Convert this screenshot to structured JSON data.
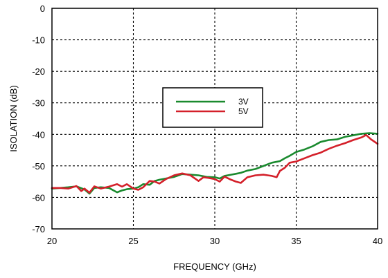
{
  "chart_data": {
    "type": "line",
    "xlabel": "FREQUENCY (GHz)",
    "ylabel": "ISOLATION (dB)",
    "xlim": [
      20,
      40
    ],
    "ylim": [
      -70,
      0
    ],
    "xticks": [
      20,
      25,
      30,
      35,
      40
    ],
    "yticks": [
      0,
      -10,
      -20,
      -30,
      -40,
      -50,
      -60,
      -70
    ],
    "grid": true,
    "legend_position": "center",
    "series": [
      {
        "name": "3V",
        "color": "#1a8a2e",
        "x": [
          20.0,
          20.5,
          21.0,
          21.5,
          22.0,
          22.3,
          22.6,
          23.0,
          23.5,
          24.0,
          24.3,
          24.6,
          25.0,
          25.3,
          25.6,
          26.0,
          26.3,
          26.6,
          27.0,
          27.5,
          28.0,
          28.5,
          29.0,
          29.5,
          30.0,
          30.3,
          30.6,
          31.0,
          31.3,
          31.6,
          32.0,
          32.5,
          33.0,
          33.5,
          34.0,
          34.3,
          34.6,
          35.0,
          35.5,
          36.0,
          36.5,
          37.0,
          37.5,
          38.0,
          38.5,
          39.0,
          39.5,
          40.0
        ],
        "y": [
          -57.2,
          -57.0,
          -56.8,
          -56.5,
          -57.5,
          -58.8,
          -57.0,
          -56.8,
          -57.0,
          -58.4,
          -57.8,
          -57.4,
          -57.2,
          -56.8,
          -55.8,
          -56.0,
          -54.8,
          -54.4,
          -54.0,
          -53.5,
          -52.6,
          -52.8,
          -53.0,
          -53.5,
          -53.6,
          -54.0,
          -53.2,
          -52.8,
          -52.5,
          -52.2,
          -51.5,
          -51.0,
          -50.0,
          -49.0,
          -48.5,
          -47.6,
          -46.8,
          -45.6,
          -44.8,
          -43.8,
          -42.4,
          -41.8,
          -41.6,
          -40.8,
          -40.3,
          -39.8,
          -39.6,
          -39.8
        ]
      },
      {
        "name": "5V",
        "color": "#d4202a",
        "x": [
          20.0,
          20.5,
          21.0,
          21.5,
          21.8,
          22.0,
          22.3,
          22.6,
          23.0,
          23.5,
          24.0,
          24.3,
          24.6,
          25.0,
          25.3,
          25.6,
          26.0,
          26.3,
          26.6,
          27.0,
          27.5,
          28.0,
          28.5,
          29.0,
          29.3,
          29.6,
          30.0,
          30.3,
          30.6,
          31.0,
          31.3,
          31.6,
          32.0,
          32.5,
          33.0,
          33.5,
          33.8,
          34.0,
          34.3,
          34.6,
          35.0,
          35.5,
          36.0,
          36.5,
          37.0,
          37.5,
          38.0,
          38.5,
          39.0,
          39.3,
          39.6,
          40.0
        ],
        "y": [
          -57.0,
          -57.0,
          -57.2,
          -56.4,
          -58.0,
          -57.2,
          -58.5,
          -56.5,
          -57.2,
          -56.6,
          -55.8,
          -56.6,
          -55.8,
          -57.2,
          -57.6,
          -56.8,
          -54.8,
          -55.0,
          -55.6,
          -54.2,
          -53.0,
          -52.4,
          -53.0,
          -54.8,
          -53.6,
          -53.8,
          -54.2,
          -55.0,
          -53.4,
          -54.4,
          -55.0,
          -55.4,
          -53.6,
          -53.0,
          -52.8,
          -53.2,
          -53.6,
          -51.6,
          -50.6,
          -49.0,
          -48.6,
          -47.6,
          -46.6,
          -45.8,
          -44.6,
          -43.6,
          -42.8,
          -41.8,
          -41.0,
          -40.2,
          -41.6,
          -43.0
        ]
      }
    ]
  }
}
